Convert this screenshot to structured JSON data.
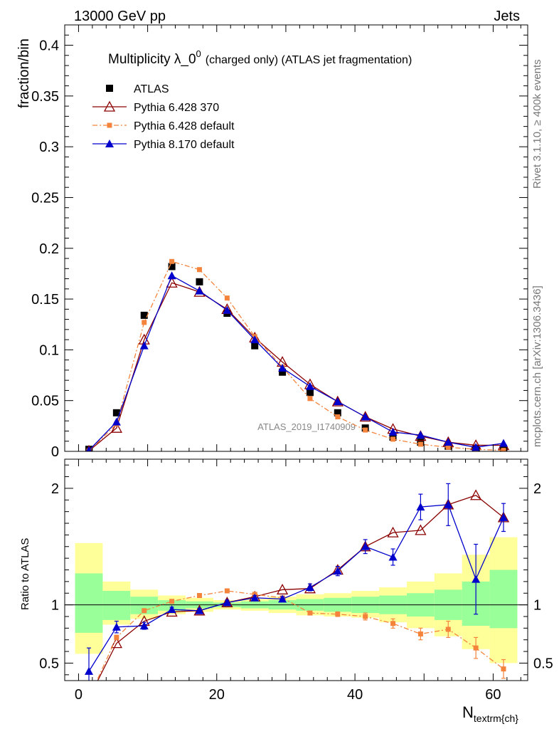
{
  "header": {
    "left": "13000 GeV pp",
    "right": "Jets"
  },
  "side_labels": {
    "rivet": "Rivet 3.1.10, ≥ 400k events",
    "mcplots": "mcplots.cern.ch [arXiv:1306.3436]"
  },
  "chart_data": [
    {
      "type": "scatter",
      "panel": "main",
      "title_main": "Multiplicity λ_0",
      "title_sup": "0",
      "title_rest": "(charged only) (ATLAS jet fragmentation)",
      "ylabel": "fraction/bin",
      "xlim": [
        -2,
        65
      ],
      "ylim": [
        0,
        0.42
      ],
      "yticks": [
        0,
        0.05,
        0.1,
        0.15,
        0.2,
        0.25,
        0.3,
        0.35,
        0.4
      ],
      "ytick_labels": [
        "0",
        "0.05",
        "0.1",
        "0.15",
        "0.2",
        "0.25",
        "0.3",
        "0.35",
        "0.4"
      ],
      "watermark": "ATLAS_2019_I1740909",
      "legend_position": "top-left",
      "x": [
        1.5,
        5.5,
        9.5,
        13.5,
        17.5,
        21.5,
        25.5,
        29.5,
        33.5,
        37.5,
        41.5,
        45.5,
        49.5,
        53.5,
        57.5,
        61.5
      ],
      "series": [
        {
          "name": "ATLAS",
          "color": "#000000",
          "marker": "square",
          "line": "none",
          "values": [
            0.002,
            0.038,
            0.134,
            0.182,
            0.167,
            0.136,
            0.104,
            0.078,
            0.058,
            0.038,
            0.023,
            0.014,
            0.009,
            0.005,
            0.003,
            0.003
          ]
        },
        {
          "name": "Pythia 6.428 370",
          "color": "#8b0000",
          "marker": "triangle-open",
          "line": "solid",
          "values": [
            0.0005,
            0.023,
            0.11,
            0.166,
            0.157,
            0.14,
            0.112,
            0.088,
            0.066,
            0.049,
            0.034,
            0.022,
            0.015,
            0.009,
            0.006,
            0.006
          ]
        },
        {
          "name": "Pythia 6.428 default",
          "color": "#f4843c",
          "marker": "square-small",
          "line": "dashdot",
          "values": [
            0.0004,
            0.027,
            0.127,
            0.187,
            0.179,
            0.151,
            0.113,
            0.083,
            0.052,
            0.034,
            0.021,
            0.012,
            0.007,
            0.004,
            0.002,
            0.001
          ]
        },
        {
          "name": "Pythia 8.170 default",
          "color": "#0000cc",
          "marker": "triangle",
          "line": "solid",
          "values": [
            0.001,
            0.029,
            0.104,
            0.173,
            0.158,
            0.139,
            0.11,
            0.082,
            0.064,
            0.049,
            0.034,
            0.019,
            0.016,
            0.009,
            0.004,
            0.008
          ]
        }
      ]
    },
    {
      "type": "line",
      "panel": "ratio",
      "ylabel": "Ratio to ATLAS",
      "xlabel_main": "N",
      "xlabel_sub": "textrm{ch}",
      "xlim": [
        -2,
        65
      ],
      "ylim": [
        0.35,
        2.25
      ],
      "yticks": [
        0.5,
        1,
        2
      ],
      "ytick_labels": [
        "0.5",
        "1",
        "2"
      ],
      "xticks": [
        0,
        20,
        40,
        60
      ],
      "xtick_labels": [
        "0",
        "20",
        "40",
        "60"
      ],
      "bins": [
        [
          -0.5,
          3.5
        ],
        [
          3.5,
          7.5
        ],
        [
          7.5,
          11.5
        ],
        [
          11.5,
          15.5
        ],
        [
          15.5,
          19.5
        ],
        [
          19.5,
          23.5
        ],
        [
          23.5,
          27.5
        ],
        [
          27.5,
          31.5
        ],
        [
          31.5,
          35.5
        ],
        [
          35.5,
          39.5
        ],
        [
          39.5,
          43.5
        ],
        [
          43.5,
          47.5
        ],
        [
          47.5,
          51.5
        ],
        [
          51.5,
          55.5
        ],
        [
          55.5,
          59.5
        ],
        [
          59.5,
          63.5
        ]
      ],
      "band_yellow": [
        [
          0.58,
          1.53
        ],
        [
          0.83,
          1.2
        ],
        [
          0.88,
          1.13
        ],
        [
          0.92,
          1.08
        ],
        [
          0.94,
          1.06
        ],
        [
          0.96,
          1.04
        ],
        [
          0.95,
          1.05
        ],
        [
          0.93,
          1.07
        ],
        [
          0.91,
          1.09
        ],
        [
          0.9,
          1.1
        ],
        [
          0.89,
          1.12
        ],
        [
          0.85,
          1.15
        ],
        [
          0.8,
          1.2
        ],
        [
          0.73,
          1.27
        ],
        [
          0.62,
          1.43
        ],
        [
          0.5,
          1.58
        ]
      ],
      "band_green": [
        [
          0.76,
          1.27
        ],
        [
          0.87,
          1.12
        ],
        [
          0.92,
          1.07
        ],
        [
          0.95,
          1.04
        ],
        [
          0.97,
          1.03
        ],
        [
          0.98,
          1.02
        ],
        [
          0.97,
          1.03
        ],
        [
          0.96,
          1.04
        ],
        [
          0.95,
          1.05
        ],
        [
          0.94,
          1.06
        ],
        [
          0.93,
          1.07
        ],
        [
          0.92,
          1.08
        ],
        [
          0.9,
          1.1
        ],
        [
          0.87,
          1.13
        ],
        [
          0.82,
          1.2
        ],
        [
          0.8,
          1.3
        ]
      ],
      "x": [
        1.5,
        5.5,
        9.5,
        13.5,
        17.5,
        21.5,
        25.5,
        29.5,
        33.5,
        37.5,
        41.5,
        45.5,
        49.5,
        53.5,
        57.5,
        61.5
      ],
      "series": [
        {
          "name": "Pythia 6.428 370",
          "color": "#8b0000",
          "marker": "triangle-open",
          "line": "solid",
          "values": [
            0.2,
            0.67,
            0.86,
            0.94,
            0.95,
            1.02,
            1.07,
            1.13,
            1.14,
            1.3,
            1.5,
            1.62,
            1.64,
            1.86,
            1.94,
            1.75
          ]
        },
        {
          "name": "Pythia 6.428 default",
          "color": "#f4843c",
          "marker": "square-small",
          "line": "dashdot",
          "values": [
            0.2,
            0.72,
            0.95,
            1.03,
            1.08,
            1.12,
            1.09,
            1.06,
            0.93,
            0.92,
            0.9,
            0.84,
            0.75,
            0.79,
            0.63,
            0.45
          ],
          "errors": [
            0,
            0.02,
            0.01,
            0.01,
            0.01,
            0.01,
            0.01,
            0.01,
            0.01,
            0.02,
            0.03,
            0.04,
            0.05,
            0.07,
            0.09,
            0.08
          ]
        },
        {
          "name": "Pythia 8.170 default",
          "color": "#0000cc",
          "marker": "triangle",
          "line": "solid",
          "values": [
            0.43,
            0.81,
            0.82,
            0.96,
            0.95,
            1.02,
            1.06,
            1.05,
            1.15,
            1.29,
            1.5,
            1.41,
            1.84,
            1.86,
            1.22,
            1.75
          ],
          "errors": [
            0.2,
            0.05,
            0.03,
            0.02,
            0.02,
            0.02,
            0.02,
            0.02,
            0.03,
            0.04,
            0.06,
            0.07,
            0.11,
            0.18,
            0.3,
            0.12
          ]
        }
      ]
    }
  ]
}
